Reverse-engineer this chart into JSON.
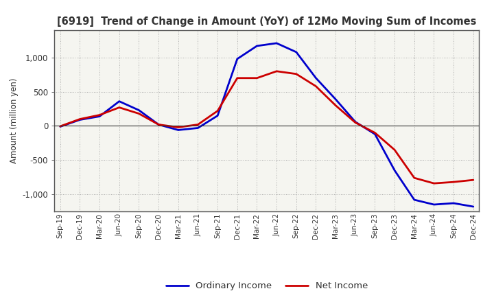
{
  "title": "[6919]  Trend of Change in Amount (YoY) of 12Mo Moving Sum of Incomes",
  "ylabel": "Amount (million yen)",
  "background_color": "#ffffff",
  "plot_bg_color": "#f5f5f0",
  "grid_color": "#aaaaaa",
  "x_labels": [
    "Sep-19",
    "Dec-19",
    "Mar-20",
    "Jun-20",
    "Sep-20",
    "Dec-20",
    "Mar-21",
    "Jun-21",
    "Sep-21",
    "Dec-21",
    "Mar-22",
    "Jun-22",
    "Sep-22",
    "Dec-22",
    "Mar-23",
    "Jun-23",
    "Sep-23",
    "Dec-23",
    "Mar-24",
    "Jun-24",
    "Sep-24",
    "Dec-24"
  ],
  "ordinary_income": [
    -10,
    90,
    140,
    360,
    230,
    20,
    -60,
    -30,
    150,
    980,
    1170,
    1210,
    1080,
    700,
    390,
    60,
    -120,
    -650,
    -1080,
    -1150,
    -1130,
    -1180
  ],
  "net_income": [
    -5,
    100,
    160,
    270,
    180,
    20,
    -20,
    20,
    220,
    700,
    700,
    800,
    760,
    580,
    300,
    50,
    -100,
    -350,
    -760,
    -840,
    -820,
    -790
  ],
  "ordinary_color": "#0000cc",
  "net_color": "#cc0000",
  "ylim": [
    -1250,
    1400
  ],
  "yticks": [
    -1000,
    -500,
    0,
    500,
    1000
  ],
  "line_width": 2.0,
  "title_color": "#333333",
  "tick_color": "#333333"
}
